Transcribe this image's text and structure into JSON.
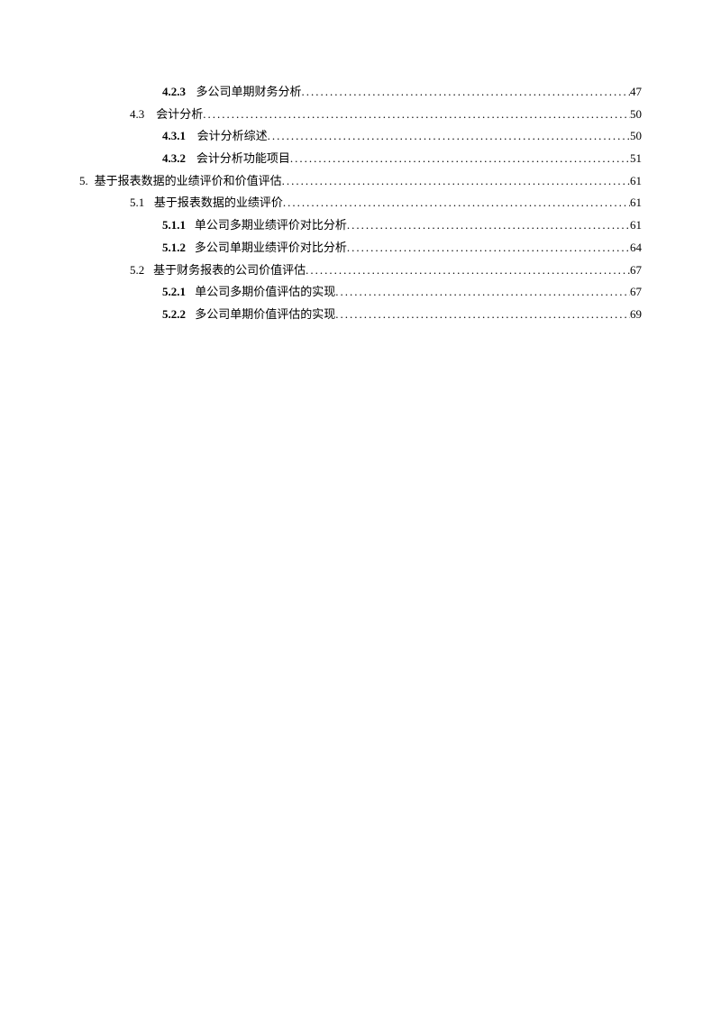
{
  "toc": [
    {
      "level": 3,
      "num": "4.2.3",
      "numBold": true,
      "gap": "lg",
      "title": "多公司单期财务分析",
      "page": "47"
    },
    {
      "level": 2,
      "num": "4.3",
      "numBold": false,
      "gap": "md",
      "title": "会计分析",
      "page": "50"
    },
    {
      "level": 3,
      "num": "4.3.1",
      "numBold": true,
      "gap": "lg",
      "title": "会计分析综述",
      "page": "50"
    },
    {
      "level": 3,
      "num": "4.3.2",
      "numBold": true,
      "gap": "lg",
      "title": "会计分析功能项目",
      "page": "51"
    },
    {
      "level": 1,
      "num": "5.",
      "numBold": false,
      "gap": "sm",
      "title": "基于报表数据的业绩评价和价值评估",
      "page": "61"
    },
    {
      "level": 2,
      "num": "5.1",
      "numBold": false,
      "gap": "md",
      "title": "基于报表数据的业绩评价",
      "page": "61"
    },
    {
      "level": 3,
      "num": "5.1.1",
      "numBold": true,
      "gap": "lg",
      "title": "单公司多期业绩评价对比分析",
      "page": "61"
    },
    {
      "level": 3,
      "num": "5.1.2",
      "numBold": true,
      "gap": "lg",
      "title": "多公司单期业绩评价对比分析",
      "page": "64"
    },
    {
      "level": 2,
      "num": "5.2",
      "numBold": false,
      "gap": "md",
      "title": "基于财务报表的公司价值评估",
      "page": "67"
    },
    {
      "level": 3,
      "num": "5.2.1",
      "numBold": true,
      "gap": "lg",
      "title": "单公司多期价值评估的实现",
      "page": "67"
    },
    {
      "level": 3,
      "num": "5.2.2",
      "numBold": true,
      "gap": "lg",
      "title": "多公司单期价值评估的实现",
      "page": "69"
    }
  ]
}
